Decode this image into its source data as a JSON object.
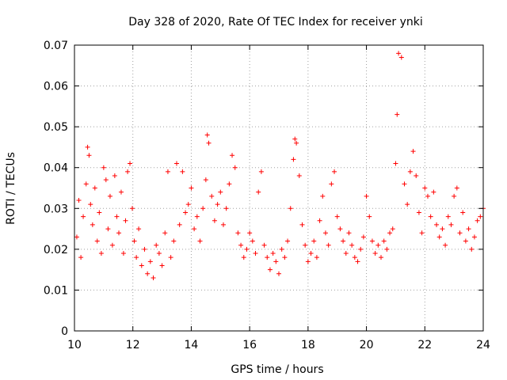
{
  "chart_data": {
    "type": "scatter",
    "title": "Day 328 of 2020, Rate Of TEC Index for receiver ynki",
    "xlabel": "GPS time / hours",
    "ylabel": "ROTI / TECUs",
    "xlim": [
      10,
      24
    ],
    "ylim": [
      0,
      0.07
    ],
    "x_ticks": [
      "10",
      "12",
      "14",
      "16",
      "18",
      "20",
      "22",
      "24"
    ],
    "y_ticks": [
      "0",
      "0.01",
      "0.02",
      "0.03",
      "0.04",
      "0.05",
      "0.06",
      "0.07"
    ],
    "grid": true,
    "marker": "plus",
    "color": "#ff0000",
    "series": [
      {
        "x": [
          10.08,
          10.15,
          10.22,
          10.3,
          10.4,
          10.45,
          10.5,
          10.55,
          10.62,
          10.7,
          10.78,
          10.85,
          10.92,
          11.0,
          11.08,
          11.15,
          11.22,
          11.3,
          11.38,
          11.45,
          11.52,
          11.6,
          11.68,
          11.75,
          11.82,
          11.9,
          11.98,
          12.05,
          12.12,
          12.2,
          12.3,
          12.4,
          12.5,
          12.6,
          12.7,
          12.8,
          12.9,
          13.0,
          13.1,
          13.2,
          13.3,
          13.4,
          13.5,
          13.6,
          13.7,
          13.8,
          13.9,
          14.0,
          14.1,
          14.2,
          14.3,
          14.4,
          14.5,
          14.55,
          14.6,
          14.7,
          14.8,
          14.9,
          15.0,
          15.1,
          15.2,
          15.3,
          15.4,
          15.5,
          15.6,
          15.7,
          15.8,
          15.9,
          16.0,
          16.1,
          16.2,
          16.3,
          16.4,
          16.5,
          16.6,
          16.7,
          16.8,
          16.9,
          17.0,
          17.1,
          17.2,
          17.3,
          17.4,
          17.5,
          17.55,
          17.6,
          17.7,
          17.8,
          17.9,
          18.0,
          18.1,
          18.2,
          18.3,
          18.4,
          18.5,
          18.6,
          18.7,
          18.8,
          18.9,
          19.0,
          19.1,
          19.2,
          19.3,
          19.4,
          19.5,
          19.6,
          19.7,
          19.8,
          19.9,
          20.0,
          20.1,
          20.2,
          20.3,
          20.4,
          20.5,
          20.6,
          20.7,
          20.8,
          20.9,
          21.0,
          21.05,
          21.1,
          21.2,
          21.3,
          21.4,
          21.5,
          21.6,
          21.7,
          21.8,
          21.9,
          22.0,
          22.1,
          22.2,
          22.3,
          22.4,
          22.5,
          22.6,
          22.7,
          22.8,
          22.9,
          23.0,
          23.1,
          23.2,
          23.3,
          23.4,
          23.5,
          23.6,
          23.7,
          23.8,
          23.9,
          24.0
        ],
        "y": [
          0.023,
          0.032,
          0.018,
          0.028,
          0.036,
          0.045,
          0.043,
          0.031,
          0.026,
          0.035,
          0.022,
          0.029,
          0.019,
          0.04,
          0.037,
          0.025,
          0.033,
          0.021,
          0.038,
          0.028,
          0.024,
          0.034,
          0.019,
          0.027,
          0.039,
          0.041,
          0.03,
          0.022,
          0.018,
          0.025,
          0.016,
          0.02,
          0.014,
          0.017,
          0.013,
          0.021,
          0.019,
          0.016,
          0.024,
          0.039,
          0.018,
          0.022,
          0.041,
          0.026,
          0.039,
          0.029,
          0.031,
          0.035,
          0.025,
          0.028,
          0.022,
          0.03,
          0.037,
          0.048,
          0.046,
          0.033,
          0.027,
          0.031,
          0.034,
          0.026,
          0.03,
          0.036,
          0.043,
          0.04,
          0.024,
          0.021,
          0.018,
          0.02,
          0.024,
          0.022,
          0.019,
          0.034,
          0.039,
          0.021,
          0.018,
          0.015,
          0.019,
          0.017,
          0.014,
          0.02,
          0.018,
          0.022,
          0.03,
          0.042,
          0.047,
          0.046,
          0.038,
          0.026,
          0.021,
          0.017,
          0.019,
          0.022,
          0.018,
          0.027,
          0.033,
          0.024,
          0.021,
          0.036,
          0.039,
          0.028,
          0.025,
          0.022,
          0.019,
          0.024,
          0.021,
          0.018,
          0.017,
          0.02,
          0.023,
          0.033,
          0.028,
          0.022,
          0.019,
          0.021,
          0.018,
          0.022,
          0.02,
          0.024,
          0.025,
          0.041,
          0.053,
          0.068,
          0.067,
          0.036,
          0.031,
          0.039,
          0.044,
          0.038,
          0.029,
          0.024,
          0.035,
          0.033,
          0.028,
          0.034,
          0.026,
          0.023,
          0.025,
          0.021,
          0.028,
          0.026,
          0.033,
          0.035,
          0.024,
          0.029,
          0.022,
          0.025,
          0.02,
          0.023,
          0.027,
          0.028,
          0.03
        ]
      }
    ]
  }
}
